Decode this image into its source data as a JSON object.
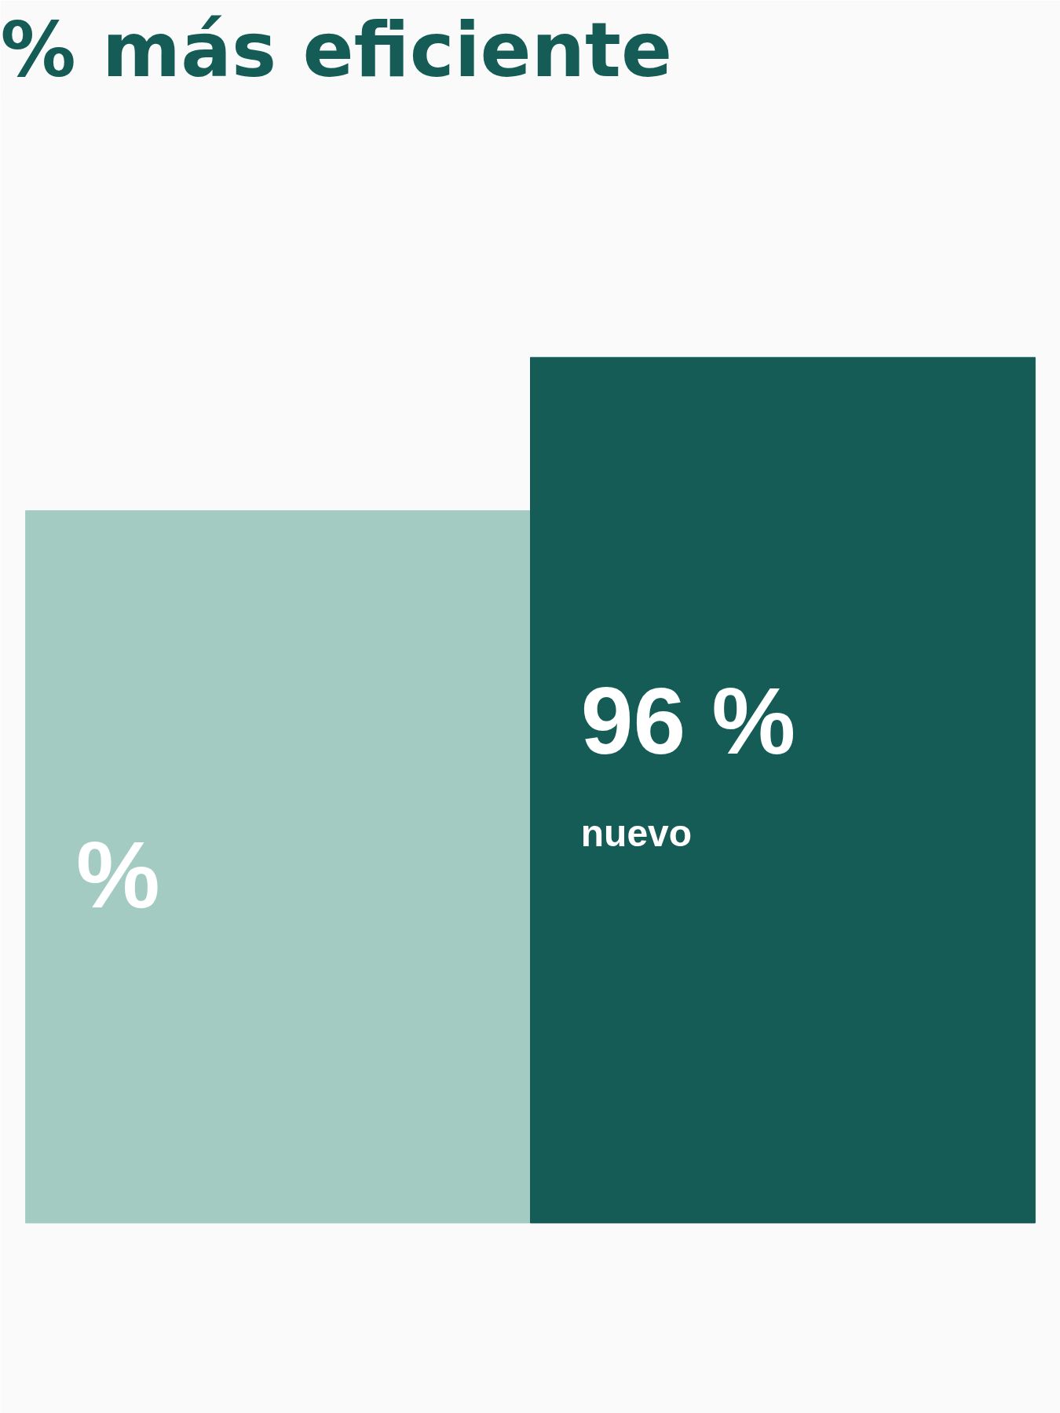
{
  "chart_data": {
    "type": "bar",
    "title": "% más eficiente",
    "categories": [
      null,
      "nuevo"
    ],
    "values": [
      79,
      96
    ],
    "colors": [
      "#a3cbc2",
      "#155c56"
    ],
    "value_labels": [
      "%",
      "96 %"
    ]
  }
}
